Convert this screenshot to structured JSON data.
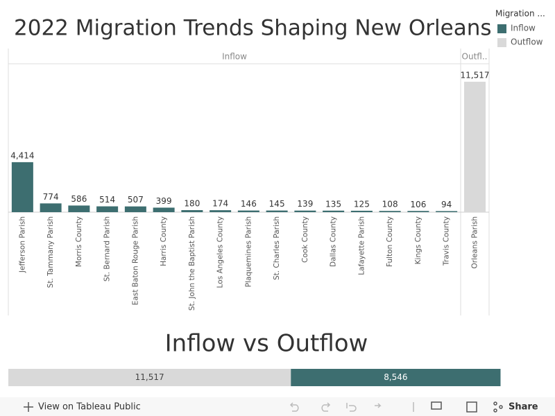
{
  "chart_data": [
    {
      "type": "bar",
      "title": "2022 Migration Trends Shaping New Orleans",
      "panels": [
        "Inflow",
        "Outfl.."
      ],
      "legend_title": "Migration ...",
      "legend": "top-right",
      "categories": [
        "Jefferson Parish",
        "St. Tammany Parish",
        "Morris County",
        "St. Bernard Parish",
        "East Baton Rouge Parish",
        "Harris County",
        "St. John the Baptist Parish",
        "Los Angeles County",
        "Plaquemines Parish",
        "St. Charles Parish",
        "Cook County",
        "Dallas County",
        "Lafayette Parish",
        "Fulton County",
        "Kings County",
        "Travis County",
        "Orleans Parish"
      ],
      "series": [
        {
          "name": "Inflow",
          "color": "#3d6e70",
          "values": [
            4414,
            774,
            586,
            514,
            507,
            399,
            180,
            174,
            146,
            145,
            139,
            135,
            125,
            108,
            106,
            94,
            null
          ],
          "value_labels": [
            "4,414",
            "774",
            "586",
            "514",
            "507",
            "399",
            "180",
            "174",
            "146",
            "145",
            "139",
            "135",
            "125",
            "108",
            "106",
            "94",
            null
          ]
        },
        {
          "name": "Outflow",
          "color": "#d9d9d9",
          "values": [
            null,
            null,
            null,
            null,
            null,
            null,
            null,
            null,
            null,
            null,
            null,
            null,
            null,
            null,
            null,
            null,
            11517
          ],
          "value_labels": [
            null,
            null,
            null,
            null,
            null,
            null,
            null,
            null,
            null,
            null,
            null,
            null,
            null,
            null,
            null,
            null,
            "11,517"
          ]
        }
      ],
      "ylim": [
        0,
        13100
      ]
    },
    {
      "type": "stacked-hbar",
      "title": "Inflow vs Outflow",
      "series": [
        {
          "name": "Outflow",
          "color": "#d9d9d9",
          "values": [
            11517
          ],
          "value_labels": [
            "11,517"
          ]
        },
        {
          "name": "Inflow",
          "color": "#3d6e70",
          "values": [
            8546
          ],
          "value_labels": [
            "8,546"
          ]
        }
      ],
      "xlim": [
        0,
        22000
      ]
    }
  ],
  "toolbar": {
    "view_link": "View on Tableau Public",
    "share": "Share"
  }
}
